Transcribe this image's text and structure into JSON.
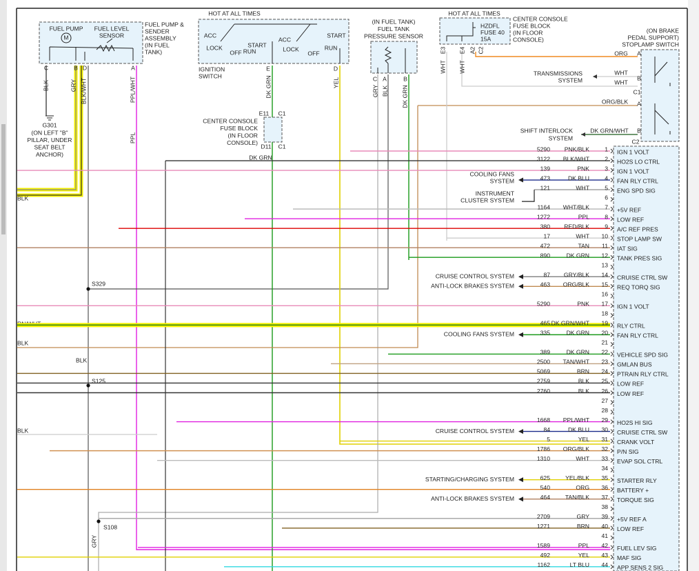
{
  "fuel_pump": {
    "pump": "FUEL PUMP",
    "motor": "M",
    "sensor": [
      "FUEL LEVEL",
      "SENSOR"
    ],
    "name": [
      "FUEL PUMP &",
      "SENDER",
      "ASSEMBLY",
      "(IN FUEL",
      "TANK)"
    ],
    "pins": [
      "C",
      "B",
      "D",
      "A"
    ],
    "wires": [
      "BLK",
      "GRY",
      "BLK/WHT",
      "PPL/WHT"
    ],
    "ppl": "PPL",
    "ground": "G301",
    "ground_note": [
      "(ON LEFT \"B\"",
      "PILLAR, UNDER",
      "SEAT BELT",
      "ANCHOR)"
    ]
  },
  "ignition_switch": {
    "hot": "HOT AT ALL TIMES",
    "left": [
      "ACC",
      "LOCK",
      "OFF",
      "START",
      "RUN"
    ],
    "right": [
      "ACC",
      "LOCK",
      "OFF",
      "START",
      "RUN"
    ],
    "name": [
      "IGNITION",
      "SWITCH"
    ],
    "pins": [
      "E",
      "D"
    ],
    "wires": [
      "DK GRN",
      "YEL"
    ]
  },
  "console_fuse_block": {
    "name": [
      "CENTER CONSOLE",
      "FUSE BLOCK",
      "(IN FLOOR",
      "CONSOLE)"
    ],
    "pins": [
      "E11",
      "C1",
      "D11",
      "C1"
    ],
    "wire": "DK GRN"
  },
  "pressure_sensor": {
    "name": [
      "(IN FUEL TANK)",
      "FUEL TANK",
      "PRESSURE SENSOR"
    ],
    "pins": [
      "C",
      "A",
      "B"
    ],
    "wires": [
      "GRY",
      "BLK",
      "DK GRN"
    ]
  },
  "fuse": {
    "hot": "HOT AT ALL TIMES",
    "fuse": [
      "HZDFL",
      "FUSE 40",
      "15A"
    ],
    "name": [
      "CENTER CONSOLE",
      "FUSE BLOCK",
      "(IN FLOOR",
      "CONSOLE)"
    ],
    "pins": [
      "E3",
      "E4",
      "A2",
      "C2"
    ],
    "wires": [
      "WHT",
      "WHT"
    ]
  },
  "stoplamp": {
    "name": [
      "(ON BRAKE",
      "PEDAL SUPPORT)",
      "STOPLAMP SWITCH"
    ],
    "pins": [
      "A",
      "B",
      "C1",
      "A",
      "B",
      "C2"
    ],
    "wires": [
      "ORG",
      "WHT",
      "WHT",
      "ORG/BLK",
      "DK GRN/WHT"
    ],
    "trans": [
      "TRANSMISSIONS",
      "SYSTEM"
    ],
    "shift": [
      "SHIFT INTERLOCK",
      "SYSTEM"
    ]
  },
  "splices": [
    "S329",
    "S125",
    "S108"
  ],
  "left_labels": [
    "BLK",
    "RN/WHT",
    "BLK",
    "BLK",
    "BLK",
    "GRY"
  ],
  "connector": {
    "rows": [
      {
        "pin": 1,
        "circuit": 5290,
        "color": "PNK/BLK",
        "function": "IGN 1 VOLT"
      },
      {
        "pin": 2,
        "circuit": 3122,
        "color": "BLK/WHT",
        "function": "HO2S LO CTRL"
      },
      {
        "pin": 3,
        "circuit": 139,
        "color": "PNK",
        "function": "IGN 1 VOLT"
      },
      {
        "pin": 4,
        "circuit": 473,
        "color": "DK BLU",
        "function": "FAN RLY CTRL",
        "dest": [
          "COOLING FANS",
          "SYSTEM"
        ]
      },
      {
        "pin": 5,
        "circuit": 121,
        "color": "WHT",
        "function": "ENG SPD SIG"
      },
      {
        "pin": 6,
        "dest": [
          "INSTRUMENT",
          "CLUSTER SYSTEM"
        ]
      },
      {
        "pin": 7,
        "circuit": 1164,
        "color": "WHT/BLK",
        "function": "+5V REF"
      },
      {
        "pin": 8,
        "circuit": 1272,
        "color": "PPL",
        "function": "LOW REF"
      },
      {
        "pin": 9,
        "circuit": 380,
        "color": "RED/BLK",
        "function": "A/C REF PRES"
      },
      {
        "pin": 10,
        "circuit": 17,
        "color": "WHT",
        "function": "STOP LAMP SW"
      },
      {
        "pin": 11,
        "circuit": 472,
        "color": "TAN",
        "function": "IAT SIG"
      },
      {
        "pin": 12,
        "circuit": 890,
        "color": "DK GRN",
        "function": "TANK PRES SIG"
      },
      {
        "pin": 13
      },
      {
        "pin": 14,
        "circuit": 87,
        "color": "GRY/BLK",
        "function": "CRUISE CTRL SW",
        "dest": [
          "CRUISE CONTROL SYSTEM"
        ]
      },
      {
        "pin": 15,
        "circuit": 463,
        "color": "ORG/BLK",
        "function": "REQ TORQ SIG",
        "dest": [
          "ANTI-LOCK BRAKES SYSTEM"
        ]
      },
      {
        "pin": 16
      },
      {
        "pin": 17,
        "circuit": 5290,
        "color": "PNK",
        "function": "IGN 1 VOLT"
      },
      {
        "pin": 18
      },
      {
        "pin": 19,
        "circuit": 465,
        "color": "DK GRN/WHT",
        "function": "RLY CTRL"
      },
      {
        "pin": 20,
        "circuit": 335,
        "color": "DK GRN",
        "function": "FAN RLY CTRL",
        "dest": [
          "COOLING FANS SYSTEM"
        ]
      },
      {
        "pin": 21
      },
      {
        "pin": 22,
        "circuit": 389,
        "color": "DK GRN",
        "function": "VEHICLE SPD SIG"
      },
      {
        "pin": 23,
        "circuit": 2500,
        "color": "TAN/WHT",
        "function": "GMLAN BUS"
      },
      {
        "pin": 24,
        "circuit": 5069,
        "color": "BRN",
        "function": "PTRAIN RLY CTRL"
      },
      {
        "pin": 25,
        "circuit": 2759,
        "color": "BLK",
        "function": "LOW REF"
      },
      {
        "pin": 26,
        "circuit": 2760,
        "color": "BLK",
        "function": "LOW REF"
      },
      {
        "pin": 27
      },
      {
        "pin": 28
      },
      {
        "pin": 29,
        "circuit": 1668,
        "color": "PPL/WHT",
        "function": "HO2S HI SIG"
      },
      {
        "pin": 30,
        "circuit": 84,
        "color": "DK BLU",
        "function": "CRUISE CTRL SW",
        "dest": [
          "CRUISE CONTROL SYSTEM"
        ]
      },
      {
        "pin": 31,
        "circuit": 5,
        "color": "YEL",
        "function": "CRANK VOLT"
      },
      {
        "pin": 32,
        "circuit": 1786,
        "color": "ORG/BLK",
        "function": "P/N SIG"
      },
      {
        "pin": 33,
        "circuit": 1310,
        "color": "WHT",
        "function": "EVAP SOL CTRL"
      },
      {
        "pin": 34
      },
      {
        "pin": 35,
        "circuit": 625,
        "color": "YEL/BLK",
        "function": "STARTER RLY",
        "dest": [
          "STARTING/CHARGING SYSTEM"
        ]
      },
      {
        "pin": 36,
        "circuit": 540,
        "color": "ORG",
        "function": "BATTERY +"
      },
      {
        "pin": 37,
        "circuit": 464,
        "color": "TAN/BLK",
        "function": "TORQUE SIG",
        "dest": [
          "ANTI-LOCK BRAKES SYSTEM"
        ]
      },
      {
        "pin": 38
      },
      {
        "pin": 39,
        "circuit": 2709,
        "color": "GRY",
        "function": "+5V REF A"
      },
      {
        "pin": 40,
        "circuit": 1271,
        "color": "BRN",
        "function": "LOW REF"
      },
      {
        "pin": 41
      },
      {
        "pin": 42,
        "circuit": 1589,
        "color": "PPL",
        "function": "FUEL LEV SIG"
      },
      {
        "pin": 43,
        "circuit": 492,
        "color": "YEL",
        "function": "MAF SIG"
      },
      {
        "pin": 44,
        "circuit": 1162,
        "color": "LT BLU",
        "function": "APP SENS 2 SIG"
      }
    ]
  }
}
